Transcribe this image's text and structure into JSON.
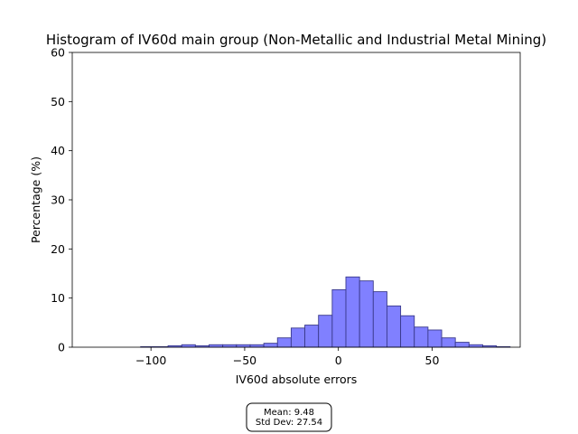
{
  "colors": {
    "bar_fill": "#8080ff",
    "bar_edge": "#3a3a8c",
    "axis": "#000000",
    "background": "#ffffff"
  },
  "chart_data": {
    "type": "bar",
    "title": "Histogram of IV60d main group (Non-Metallic and Industrial Metal Mining)",
    "xlabel": "IV60d absolute errors",
    "ylabel": "Percentage (%)",
    "xlim": [
      -142,
      97
    ],
    "ylim": [
      0,
      60
    ],
    "xticks": [
      -100,
      -50,
      0,
      50
    ],
    "xtick_labels": [
      "−100",
      "−50",
      "0",
      "50"
    ],
    "yticks": [
      0,
      10,
      20,
      30,
      40,
      50,
      60
    ],
    "ytick_labels": [
      "0",
      "10",
      "20",
      "30",
      "40",
      "50",
      "60"
    ],
    "grid": false,
    "bin_width": 7.3,
    "bin_edges_start": -134.7,
    "values": [
      0.0,
      0.0,
      0.0,
      0.0,
      0.1,
      0.1,
      0.3,
      0.5,
      0.3,
      0.5,
      0.5,
      0.5,
      0.5,
      0.8,
      1.9,
      3.9,
      4.5,
      6.5,
      11.7,
      14.3,
      13.5,
      11.3,
      8.4,
      6.4,
      4.1,
      3.5,
      1.9,
      1.0,
      0.5,
      0.3,
      0.1
    ],
    "annotation": {
      "lines": [
        "Mean: 9.48",
        "Std Dev: 27.54"
      ]
    }
  }
}
